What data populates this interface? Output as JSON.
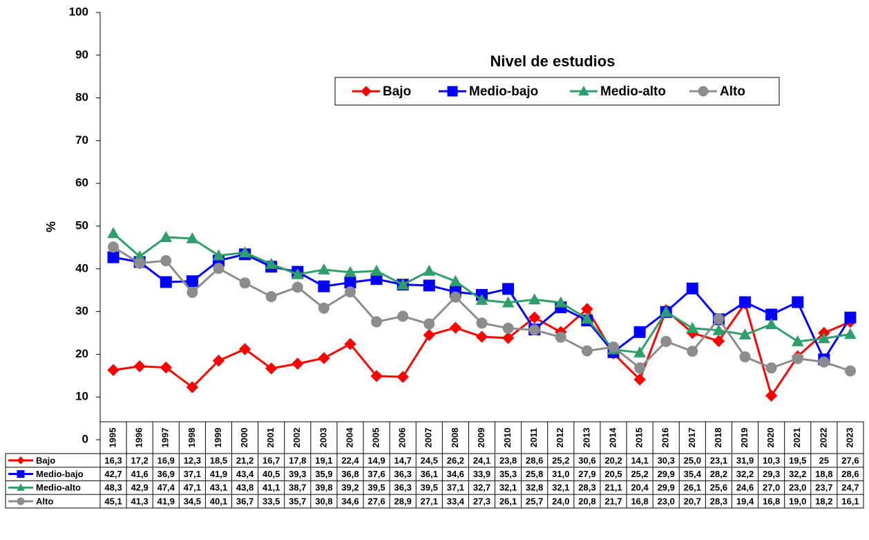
{
  "chart_data": {
    "type": "line",
    "title": "Nivel de estudios",
    "y_label": "%",
    "categories": [
      "1995",
      "1996",
      "1997",
      "1998",
      "1999",
      "2000",
      "2001",
      "2002",
      "2003",
      "2004",
      "2005",
      "2006",
      "2007",
      "2008",
      "2009",
      "2010",
      "2011",
      "2012",
      "2013",
      "2014",
      "2015",
      "2016",
      "2017",
      "2018",
      "2019",
      "2020",
      "2021",
      "2022",
      "2023"
    ],
    "ylim": [
      0,
      100
    ],
    "yticks": [
      0,
      10,
      20,
      30,
      40,
      50,
      60,
      70,
      80,
      90,
      100
    ],
    "grid": false,
    "series": [
      {
        "name": "Bajo",
        "color": "#ff0000",
        "marker": "diamond",
        "values": [
          16.3,
          17.2,
          16.9,
          12.3,
          18.5,
          21.2,
          16.7,
          17.8,
          19.1,
          22.4,
          14.9,
          14.7,
          24.5,
          26.2,
          24.1,
          23.8,
          28.6,
          25.2,
          30.6,
          20.2,
          14.1,
          30.3,
          25.0,
          23.1,
          31.9,
          10.3,
          19.5,
          25,
          27.6
        ],
        "value_labels": [
          "16,3",
          "17,2",
          "16,9",
          "12,3",
          "18,5",
          "21,2",
          "16,7",
          "17,8",
          "19,1",
          "22,4",
          "14,9",
          "14,7",
          "24,5",
          "26,2",
          "24,1",
          "23,8",
          "28,6",
          "25,2",
          "30,6",
          "20,2",
          "14,1",
          "30,3",
          "25,0",
          "23,1",
          "31,9",
          "10,3",
          "19,5",
          "25",
          "27,6"
        ]
      },
      {
        "name": "Medio-bajo",
        "color": "#0000ff",
        "marker": "square",
        "values": [
          42.7,
          41.6,
          36.9,
          37.1,
          41.9,
          43.4,
          40.5,
          39.3,
          35.9,
          36.8,
          37.6,
          36.3,
          36.1,
          34.6,
          33.9,
          35.3,
          25.8,
          31.0,
          27.9,
          20.5,
          25.2,
          29.9,
          35.4,
          28.2,
          32.2,
          29.3,
          32.2,
          18.8,
          28.6
        ],
        "value_labels": [
          "42,7",
          "41,6",
          "36,9",
          "37,1",
          "41,9",
          "43,4",
          "40,5",
          "39,3",
          "35,9",
          "36,8",
          "37,6",
          "36,3",
          "36,1",
          "34,6",
          "33,9",
          "35,3",
          "25,8",
          "31,0",
          "27,9",
          "20,5",
          "25,2",
          "29,9",
          "35,4",
          "28,2",
          "32,2",
          "29,3",
          "32,2",
          "18,8",
          "28,6"
        ]
      },
      {
        "name": "Medio-alto",
        "color": "#2e9e6a",
        "marker": "triangle",
        "values": [
          48.3,
          42.9,
          47.4,
          47.1,
          43.1,
          43.8,
          41.1,
          38.7,
          39.8,
          39.2,
          39.5,
          36.3,
          39.5,
          37.1,
          32.7,
          32.1,
          32.8,
          32.1,
          28.3,
          21.1,
          20.4,
          29.9,
          26.1,
          25.6,
          24.6,
          27.0,
          23.0,
          23.7,
          24.7
        ],
        "value_labels": [
          "48,3",
          "42,9",
          "47,4",
          "47,1",
          "43,1",
          "43,8",
          "41,1",
          "38,7",
          "39,8",
          "39,2",
          "39,5",
          "36,3",
          "39,5",
          "37,1",
          "32,7",
          "32,1",
          "32,8",
          "32,1",
          "28,3",
          "21,1",
          "20,4",
          "29,9",
          "26,1",
          "25,6",
          "24,6",
          "27,0",
          "23,0",
          "23,7",
          "24,7"
        ]
      },
      {
        "name": "Alto",
        "color": "#8c8c8c",
        "marker": "circle",
        "values": [
          45.1,
          41.3,
          41.9,
          34.5,
          40.1,
          36.7,
          33.5,
          35.7,
          30.8,
          34.6,
          27.6,
          28.9,
          27.1,
          33.4,
          27.3,
          26.1,
          25.7,
          24.0,
          20.8,
          21.7,
          16.8,
          23.0,
          20.7,
          28.3,
          19.4,
          16.8,
          19.0,
          18.2,
          16.1
        ],
        "value_labels": [
          "45,1",
          "41,3",
          "41,9",
          "34,5",
          "40,1",
          "36,7",
          "33,5",
          "35,7",
          "30,8",
          "34,6",
          "27,6",
          "28,9",
          "27,1",
          "33,4",
          "27,3",
          "26,1",
          "25,7",
          "24,0",
          "20,8",
          "21,7",
          "16,8",
          "23,0",
          "20,7",
          "28,3",
          "19,4",
          "16,8",
          "19,0",
          "18,2",
          "16,1"
        ]
      }
    ]
  }
}
